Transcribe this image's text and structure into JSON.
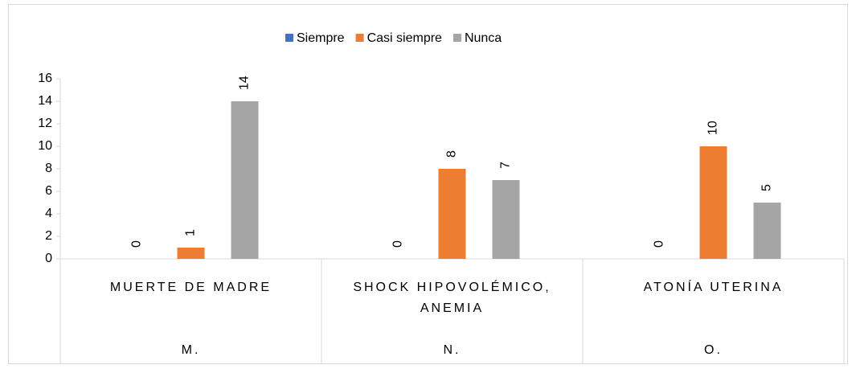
{
  "chart_data": {
    "type": "bar",
    "categories": [
      "MUERTE DE MADRE",
      "SHOCK HIPOVOLÉMICO, ANEMIA",
      "ATONÍA UTERINA"
    ],
    "category_groups": [
      "M.",
      "N.",
      "O."
    ],
    "series": [
      {
        "name": "Siempre",
        "color": "#4472c4",
        "values": [
          0,
          0,
          0
        ]
      },
      {
        "name": "Casi siempre",
        "color": "#ed7d31",
        "values": [
          1,
          8,
          10
        ]
      },
      {
        "name": "Nunca",
        "color": "#a5a5a5",
        "values": [
          14,
          7,
          5
        ]
      }
    ],
    "ylim": [
      0,
      16
    ],
    "yticks": [
      0,
      2,
      4,
      6,
      8,
      10,
      12,
      14,
      16
    ],
    "legend": "top",
    "grid": false,
    "data_labels": true
  }
}
